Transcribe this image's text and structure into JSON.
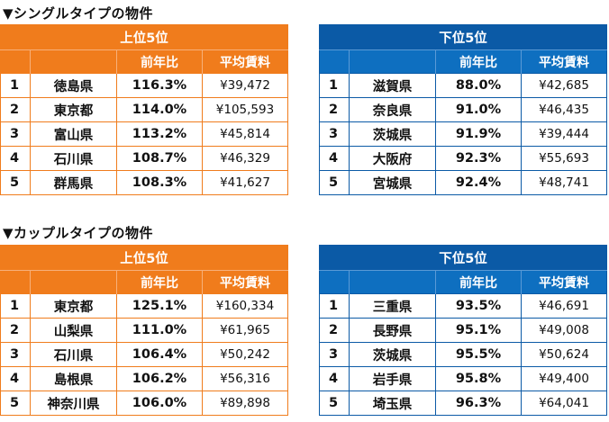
{
  "single": {
    "title": "▼シングルタイプの物件",
    "top": {
      "heading": "上位5位",
      "col_ratio": "前年比",
      "col_rent": "平均賃料",
      "rows": [
        {
          "rank": "1",
          "pref": "徳島県",
          "ratio": "116.3%",
          "rent": "¥39,472"
        },
        {
          "rank": "2",
          "pref": "東京都",
          "ratio": "114.0%",
          "rent": "¥105,593"
        },
        {
          "rank": "3",
          "pref": "富山県",
          "ratio": "113.2%",
          "rent": "¥45,814"
        },
        {
          "rank": "4",
          "pref": "石川県",
          "ratio": "108.7%",
          "rent": "¥46,329"
        },
        {
          "rank": "5",
          "pref": "群馬県",
          "ratio": "108.3%",
          "rent": "¥41,627"
        }
      ]
    },
    "bottom": {
      "heading": "下位5位",
      "col_ratio": "前年比",
      "col_rent": "平均賃料",
      "rows": [
        {
          "rank": "1",
          "pref": "滋賀県",
          "ratio": "88.0%",
          "rent": "¥42,685"
        },
        {
          "rank": "2",
          "pref": "奈良県",
          "ratio": "91.0%",
          "rent": "¥46,435"
        },
        {
          "rank": "3",
          "pref": "茨城県",
          "ratio": "91.9%",
          "rent": "¥39,444"
        },
        {
          "rank": "4",
          "pref": "大阪府",
          "ratio": "92.3%",
          "rent": "¥55,693"
        },
        {
          "rank": "5",
          "pref": "宮城県",
          "ratio": "92.4%",
          "rent": "¥48,741"
        }
      ]
    }
  },
  "couple": {
    "title": "▼カップルタイプの物件",
    "top": {
      "heading": "上位5位",
      "col_ratio": "前年比",
      "col_rent": "平均賃料",
      "rows": [
        {
          "rank": "1",
          "pref": "東京都",
          "ratio": "125.1%",
          "rent": "¥160,334"
        },
        {
          "rank": "2",
          "pref": "山梨県",
          "ratio": "111.0%",
          "rent": "¥61,965"
        },
        {
          "rank": "3",
          "pref": "石川県",
          "ratio": "106.4%",
          "rent": "¥50,242"
        },
        {
          "rank": "4",
          "pref": "島根県",
          "ratio": "106.2%",
          "rent": "¥56,316"
        },
        {
          "rank": "5",
          "pref": "神奈川県",
          "ratio": "106.0%",
          "rent": "¥89,898"
        }
      ]
    },
    "bottom": {
      "heading": "下位5位",
      "col_ratio": "前年比",
      "col_rent": "平均賃料",
      "rows": [
        {
          "rank": "1",
          "pref": "三重県",
          "ratio": "93.5%",
          "rent": "¥46,691"
        },
        {
          "rank": "2",
          "pref": "長野県",
          "ratio": "95.1%",
          "rent": "¥49,008"
        },
        {
          "rank": "3",
          "pref": "茨城県",
          "ratio": "95.5%",
          "rent": "¥50,624"
        },
        {
          "rank": "4",
          "pref": "岩手県",
          "ratio": "95.8%",
          "rent": "¥49,400"
        },
        {
          "rank": "5",
          "pref": "埼玉県",
          "ratio": "96.3%",
          "rent": "¥64,041"
        }
      ]
    }
  },
  "colors": {
    "orange": "#f07c1c",
    "blue": "#0b5aa6"
  }
}
